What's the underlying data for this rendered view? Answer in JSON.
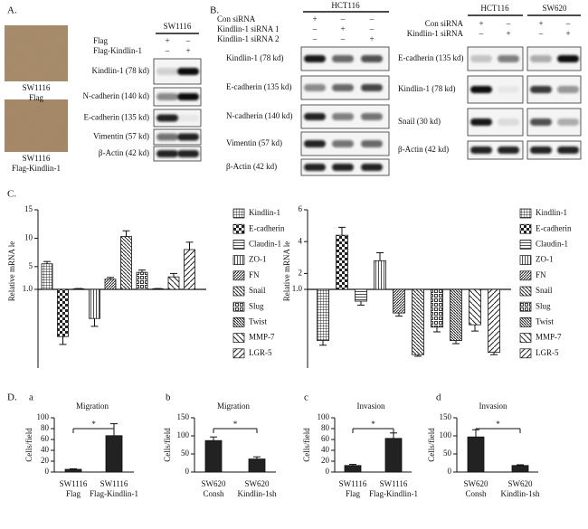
{
  "panel_labels": [
    "A.",
    "B.",
    "C.",
    "D."
  ],
  "panel_a": {
    "images": [
      {
        "lines": [
          "SW1116",
          "Flag"
        ]
      },
      {
        "lines": [
          "SW1116",
          "Flag-Kindlin-1"
        ]
      }
    ],
    "blot": {
      "headers": [
        "SW1116"
      ],
      "conditions": [
        {
          "name": "Flag",
          "signs": [
            "+",
            "–"
          ]
        },
        {
          "name": "Flag-Kindlin-1",
          "signs": [
            "–",
            "+"
          ]
        }
      ],
      "rows": [
        "Kindlin-1 (78 kd)",
        "N-cadherin (140 kd)",
        "E-cadherin (135 kd)",
        "Vimentin (57 kd)",
        "β-Actin (42 kd)"
      ]
    }
  },
  "panel_b": {
    "blots": [
      {
        "headers": [
          "HCT116"
        ],
        "conditions": [
          {
            "name": "Con siRNA",
            "signs": [
              "+",
              "–",
              "–"
            ]
          },
          {
            "name": "Kindlin-1 siRNA 1",
            "signs": [
              "–",
              "+",
              "–"
            ]
          },
          {
            "name": "Kindlin-1 siRNA 2",
            "signs": [
              "–",
              "–",
              "+"
            ]
          }
        ],
        "rows": [
          "Kindlin-1 (78 kd)",
          "E-cadherin (135 kd)",
          "N-cadherin (140 kd)",
          "Vimentin (57 kd)",
          "β-Actin (42 kd)"
        ]
      },
      {
        "headers": [
          "HCT116",
          "SW620"
        ],
        "conditions": [
          {
            "name": "Con siRNA",
            "signs": [
              "+",
              "–",
              "+",
              "–"
            ]
          },
          {
            "name": "Kindlin-1 siRNA",
            "signs": [
              "–",
              "+",
              "–",
              "+"
            ]
          }
        ],
        "rows": [
          "E-cadherin (135 kd)",
          "Kindlin-1 (78 kd)",
          "Snail (30 kd)",
          "β-Actin (42 kd)"
        ]
      }
    ]
  },
  "chart_data": [
    {
      "type": "bar",
      "ylabel": "Relative mRNA le",
      "categories": [
        "Kindlin-1",
        "E-cadherin",
        "Claudin-1",
        "ZO-1",
        "FN",
        "Snail",
        "Slug",
        "Twist",
        "MMP-7",
        "LGR-5"
      ],
      "values": [
        5.5,
        0.4,
        1.1,
        0.63,
        2.8,
        10.3,
        4.0,
        1.1,
        3.2,
        8.0
      ],
      "errors": [
        0.4,
        0.1,
        0.05,
        0.1,
        0.3,
        1.0,
        0.4,
        0.05,
        0.6,
        1.3
      ],
      "patterns": [
        "fine-grid",
        "checker",
        "hlines",
        "vlines",
        "dense-diag",
        "backslash",
        "squares",
        "dense-back",
        "wide-back",
        "wide-slash"
      ],
      "ylim": [
        0,
        15
      ],
      "axis_break": 1.0,
      "yticks": [
        {
          "value": 1.0,
          "label": "1.0"
        },
        5,
        10,
        15
      ]
    },
    {
      "type": "bar",
      "ylabel": "Relative mRNA le",
      "categories": [
        "Kindlin-1",
        "E-cadherin",
        "Claudin-1",
        "ZO-1",
        "FN",
        "Snail",
        "Slug",
        "Twist",
        "MMP-7",
        "LGR-5"
      ],
      "values": [
        0.35,
        4.4,
        0.85,
        2.8,
        0.7,
        0.17,
        0.52,
        0.35,
        0.55,
        0.2
      ],
      "errors": [
        0.06,
        0.5,
        0.05,
        0.5,
        0.04,
        0.02,
        0.06,
        0.04,
        0.08,
        0.03
      ],
      "patterns": [
        "fine-grid",
        "checker",
        "hlines",
        "vlines",
        "dense-diag",
        "backslash",
        "squares",
        "dense-back",
        "wide-back",
        "wide-slash"
      ],
      "ylim": [
        0,
        6
      ],
      "axis_break": 1.0,
      "yticks": [
        {
          "value": 1.0,
          "label": "1.0"
        },
        2,
        4,
        6
      ]
    },
    {
      "type": "bar",
      "label": "a",
      "title": "Migration",
      "ylabel": "Cells/field",
      "categories": [
        [
          "SW1116",
          "Flag"
        ],
        [
          "SW1116",
          "Flag-Kindlin-1"
        ]
      ],
      "values": [
        5,
        67
      ],
      "errors": [
        1,
        22
      ],
      "color": "#222222",
      "significance": "*",
      "ylim": [
        0,
        100
      ],
      "yticks": [
        0,
        20,
        40,
        60,
        80,
        100
      ]
    },
    {
      "type": "bar",
      "label": "b",
      "title": "Migration",
      "ylabel": "Cells/field",
      "categories": [
        [
          "SW620",
          "Consh"
        ],
        [
          "SW620",
          "Kindlin-1sh"
        ]
      ],
      "values": [
        87,
        36
      ],
      "errors": [
        10,
        6
      ],
      "color": "#222222",
      "significance": "*",
      "ylim": [
        0,
        150
      ],
      "yticks": [
        0,
        50,
        100,
        150
      ]
    },
    {
      "type": "bar",
      "label": "c",
      "title": "Invasion",
      "ylabel": "Cells/field",
      "categories": [
        [
          "SW1116",
          "Flag"
        ],
        [
          "SW1116",
          "Flag-Kindlin-1"
        ]
      ],
      "values": [
        12,
        62
      ],
      "errors": [
        2,
        10
      ],
      "color": "#222222",
      "significance": "*",
      "ylim": [
        0,
        100
      ],
      "yticks": [
        0,
        20,
        40,
        60,
        80,
        100
      ]
    },
    {
      "type": "bar",
      "label": "d",
      "title": "Invasion",
      "ylabel": "Cells/field",
      "categories": [
        [
          "SW620",
          "Consh"
        ],
        [
          "SW620",
          "Kindlin-1sh"
        ]
      ],
      "values": [
        97,
        18
      ],
      "errors": [
        20,
        2
      ],
      "color": "#222222",
      "significance": "*",
      "ylim": [
        0,
        150
      ],
      "yticks": [
        0,
        50,
        100,
        150
      ]
    }
  ]
}
